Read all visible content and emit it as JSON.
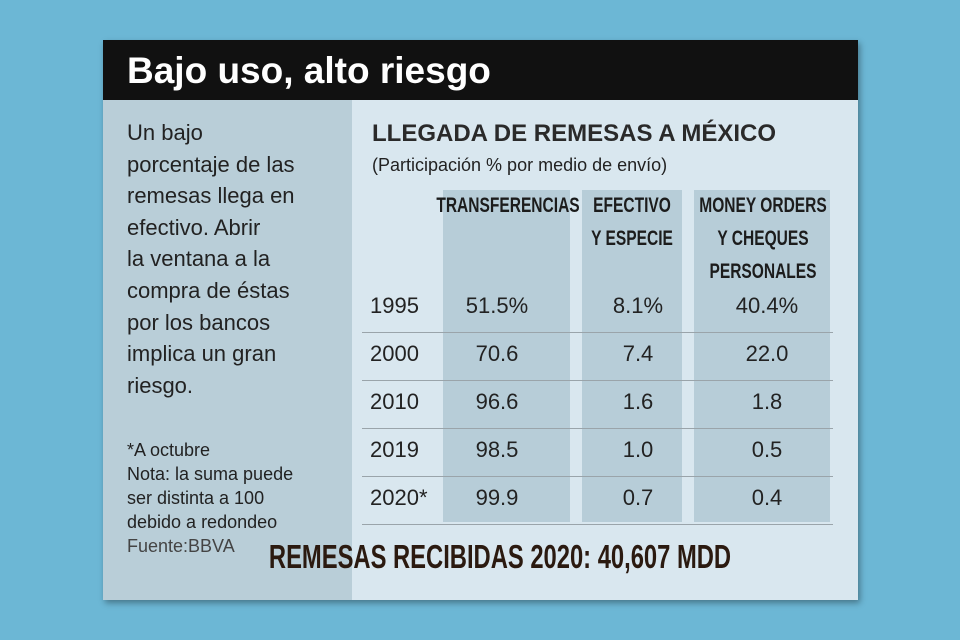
{
  "header": {
    "title": "Bajo uso, alto riesgo"
  },
  "sidebar": {
    "lines": [
      "Un bajo",
      "porcentaje de las",
      "remesas llega en",
      "efectivo. Abrir",
      "la ventana a la",
      "compra de éstas",
      "por los bancos",
      "implica un gran",
      "riesgo."
    ],
    "notes": [
      "*A octubre",
      "Nota: la suma puede",
      "ser distinta a 100",
      "debido a redondeo",
      "Fuente:BBVA"
    ]
  },
  "table": {
    "title": "LLEGADA DE REMESAS A MÉXICO",
    "subtitle": "(Participación % por medio de envío)",
    "columns": [
      [
        "TRANSFERENCIAS"
      ],
      [
        "EFECTIVO",
        "Y ESPECIE"
      ],
      [
        "MONEY ORDERS",
        "Y CHEQUES",
        "PERSONALES"
      ]
    ],
    "rows": [
      [
        "1995",
        "51.5%",
        "8.1%",
        "40.4%"
      ],
      [
        "2000",
        "70.6",
        "7.4",
        "22.0"
      ],
      [
        "2010",
        "96.6",
        "1.6",
        "1.8"
      ],
      [
        "2019",
        "98.5",
        "1.0",
        "0.5"
      ],
      [
        "2020*",
        "99.9",
        "0.7",
        "0.4"
      ]
    ]
  },
  "footer": "REMESAS RECIBIDAS 2020: 40,607 MDD"
}
